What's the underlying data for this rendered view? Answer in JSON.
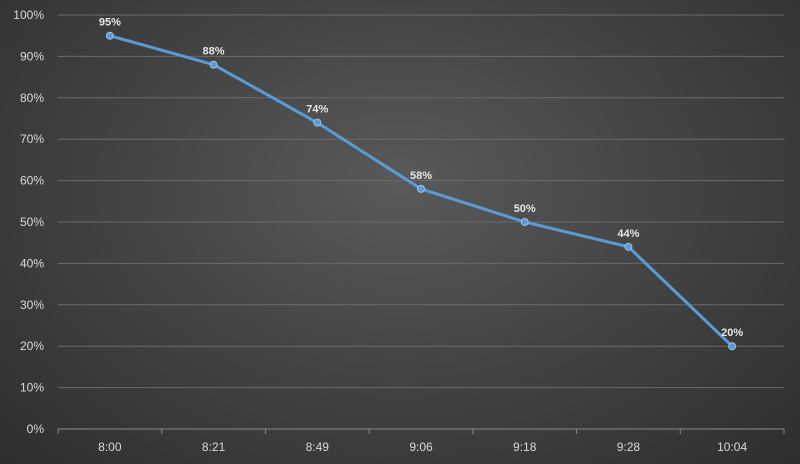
{
  "chart_data": {
    "type": "line",
    "title": "",
    "xlabel": "",
    "ylabel": "",
    "categories": [
      "8:00",
      "8:21",
      "8:49",
      "9:06",
      "9:18",
      "9:28",
      "10:04"
    ],
    "series": [
      {
        "values": [
          95,
          88,
          74,
          58,
          50,
          44,
          20
        ],
        "color": "#5b9bd5"
      }
    ],
    "ylim": [
      0,
      100
    ],
    "y_ticks": [
      0,
      10,
      20,
      30,
      40,
      50,
      60,
      70,
      80,
      90,
      100
    ],
    "y_tick_format": "%",
    "data_labels": [
      "95%",
      "88%",
      "74%",
      "58%",
      "50%",
      "44%",
      "20%"
    ],
    "grid": true,
    "legend": "none"
  }
}
